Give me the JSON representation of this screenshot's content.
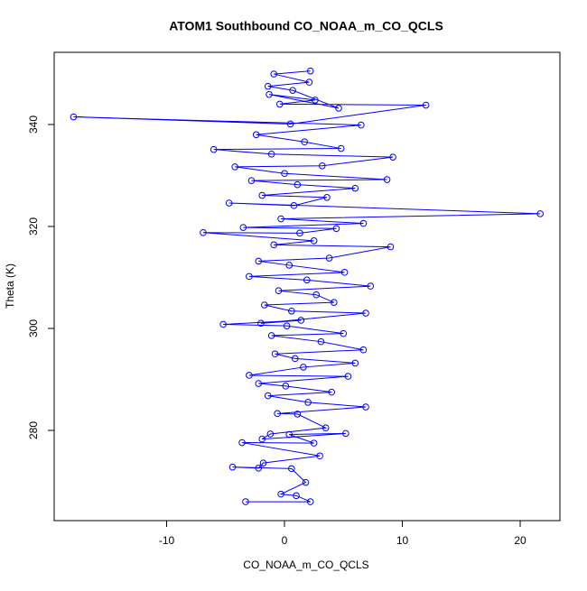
{
  "chart_data": {
    "type": "scatter",
    "title": "ATOM1 Southbound CO_NOAA_m_CO_QCLS",
    "x_label": "CO_NOAA_m_CO_QCLS",
    "y_label": "Theta (K)",
    "color": "#0000ff",
    "connect": true,
    "x": [
      -3.3,
      2.2,
      1.0,
      -0.3,
      1.8,
      0.6,
      -4.4,
      -2.2,
      -1.8,
      3.0,
      -3.6,
      2.5,
      0.4,
      5.2,
      -1.9,
      -1.2,
      3.5,
      1.1,
      -0.6,
      6.9,
      2.0,
      -1.4,
      4.0,
      0.1,
      -2.2,
      5.4,
      -3.0,
      1.6,
      6.0,
      0.9,
      -0.8,
      6.7,
      3.1,
      -1.1,
      5.0,
      0.2,
      -5.2,
      1.4,
      -2.0,
      6.9,
      0.6,
      -1.7,
      4.2,
      2.7,
      -0.5,
      7.3,
      1.9,
      -3.0,
      5.1,
      0.4,
      -2.2,
      3.8,
      9.0,
      -0.9,
      2.5,
      -6.9,
      1.3,
      4.4,
      -3.5,
      6.7,
      -0.3,
      21.7,
      -4.7,
      0.8,
      3.6,
      -1.9,
      6.0,
      1.1,
      -2.8,
      8.7,
      0.0,
      -4.2,
      3.2,
      9.2,
      -1.1,
      -6.0,
      4.8,
      1.7,
      -2.4,
      6.5,
      -17.9,
      0.5,
      12.0,
      -0.4,
      2.6,
      -1.3,
      4.6,
      0.7,
      -1.4,
      2.1,
      -0.9,
      2.2
    ],
    "y": [
      266,
      266,
      267.2,
      267.5,
      269.8,
      272.5,
      272.8,
      272.6,
      273.6,
      275.0,
      277.6,
      277.5,
      279.2,
      279.4,
      278.3,
      279.3,
      280.5,
      283.2,
      283.3,
      284.6,
      285.5,
      286.8,
      287.5,
      288.7,
      289.2,
      290.6,
      290.8,
      292.4,
      293.2,
      294.1,
      295.0,
      295.8,
      297.4,
      298.6,
      299.0,
      300.5,
      300.8,
      301.6,
      301.0,
      303.0,
      303.4,
      304.6,
      305.1,
      306.6,
      307.4,
      308.3,
      309.5,
      310.2,
      311.0,
      312.4,
      313.2,
      313.8,
      316.0,
      316.4,
      317.2,
      318.8,
      318.7,
      319.6,
      319.8,
      320.6,
      321.5,
      322.5,
      324.6,
      324.1,
      325.7,
      326.1,
      327.5,
      328.2,
      329.0,
      329.2,
      330.4,
      331.7,
      331.9,
      333.6,
      334.2,
      335.1,
      335.3,
      336.6,
      338.0,
      339.9,
      341.5,
      340.1,
      343.8,
      344.0,
      344.8,
      345.9,
      343.2,
      346.7,
      347.5,
      348.3,
      349.9,
      350.5
    ],
    "xlim": [
      -19.54,
      23.37
    ],
    "ylim": [
      262.3,
      354.16
    ],
    "xticks": [
      -10,
      0,
      10,
      20
    ],
    "yticks": [
      280,
      300,
      320,
      340
    ]
  }
}
